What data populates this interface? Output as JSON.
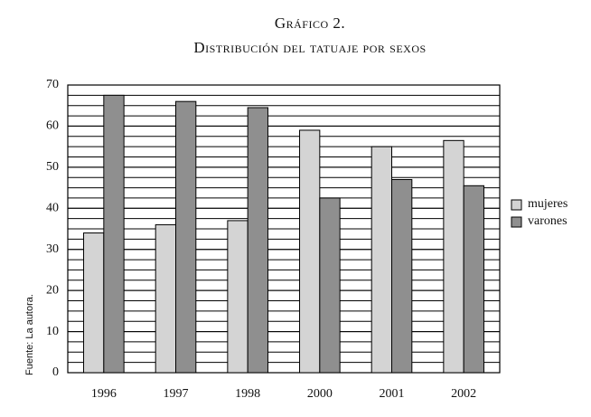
{
  "chart_data": {
    "type": "bar",
    "title": "Gráfico 2.",
    "subtitle": "Distribución del tatuaje por sexos",
    "source": "Fuente: La autora.",
    "categories": [
      "1996",
      "1997",
      "1998",
      "2000",
      "2001",
      "2002"
    ],
    "series": [
      {
        "name": "mujeres",
        "color": "#d4d4d4",
        "values": [
          34,
          36,
          37,
          59,
          55,
          56.5
        ]
      },
      {
        "name": "varones",
        "color": "#8f8f8f",
        "values": [
          67.5,
          66,
          64.5,
          42.5,
          47,
          45.5
        ]
      }
    ],
    "ylim": [
      0,
      70
    ],
    "yticks": [
      0,
      10,
      20,
      30,
      40,
      50,
      60,
      70
    ],
    "grid": true,
    "grid_step": 2.5,
    "legend": "right"
  }
}
